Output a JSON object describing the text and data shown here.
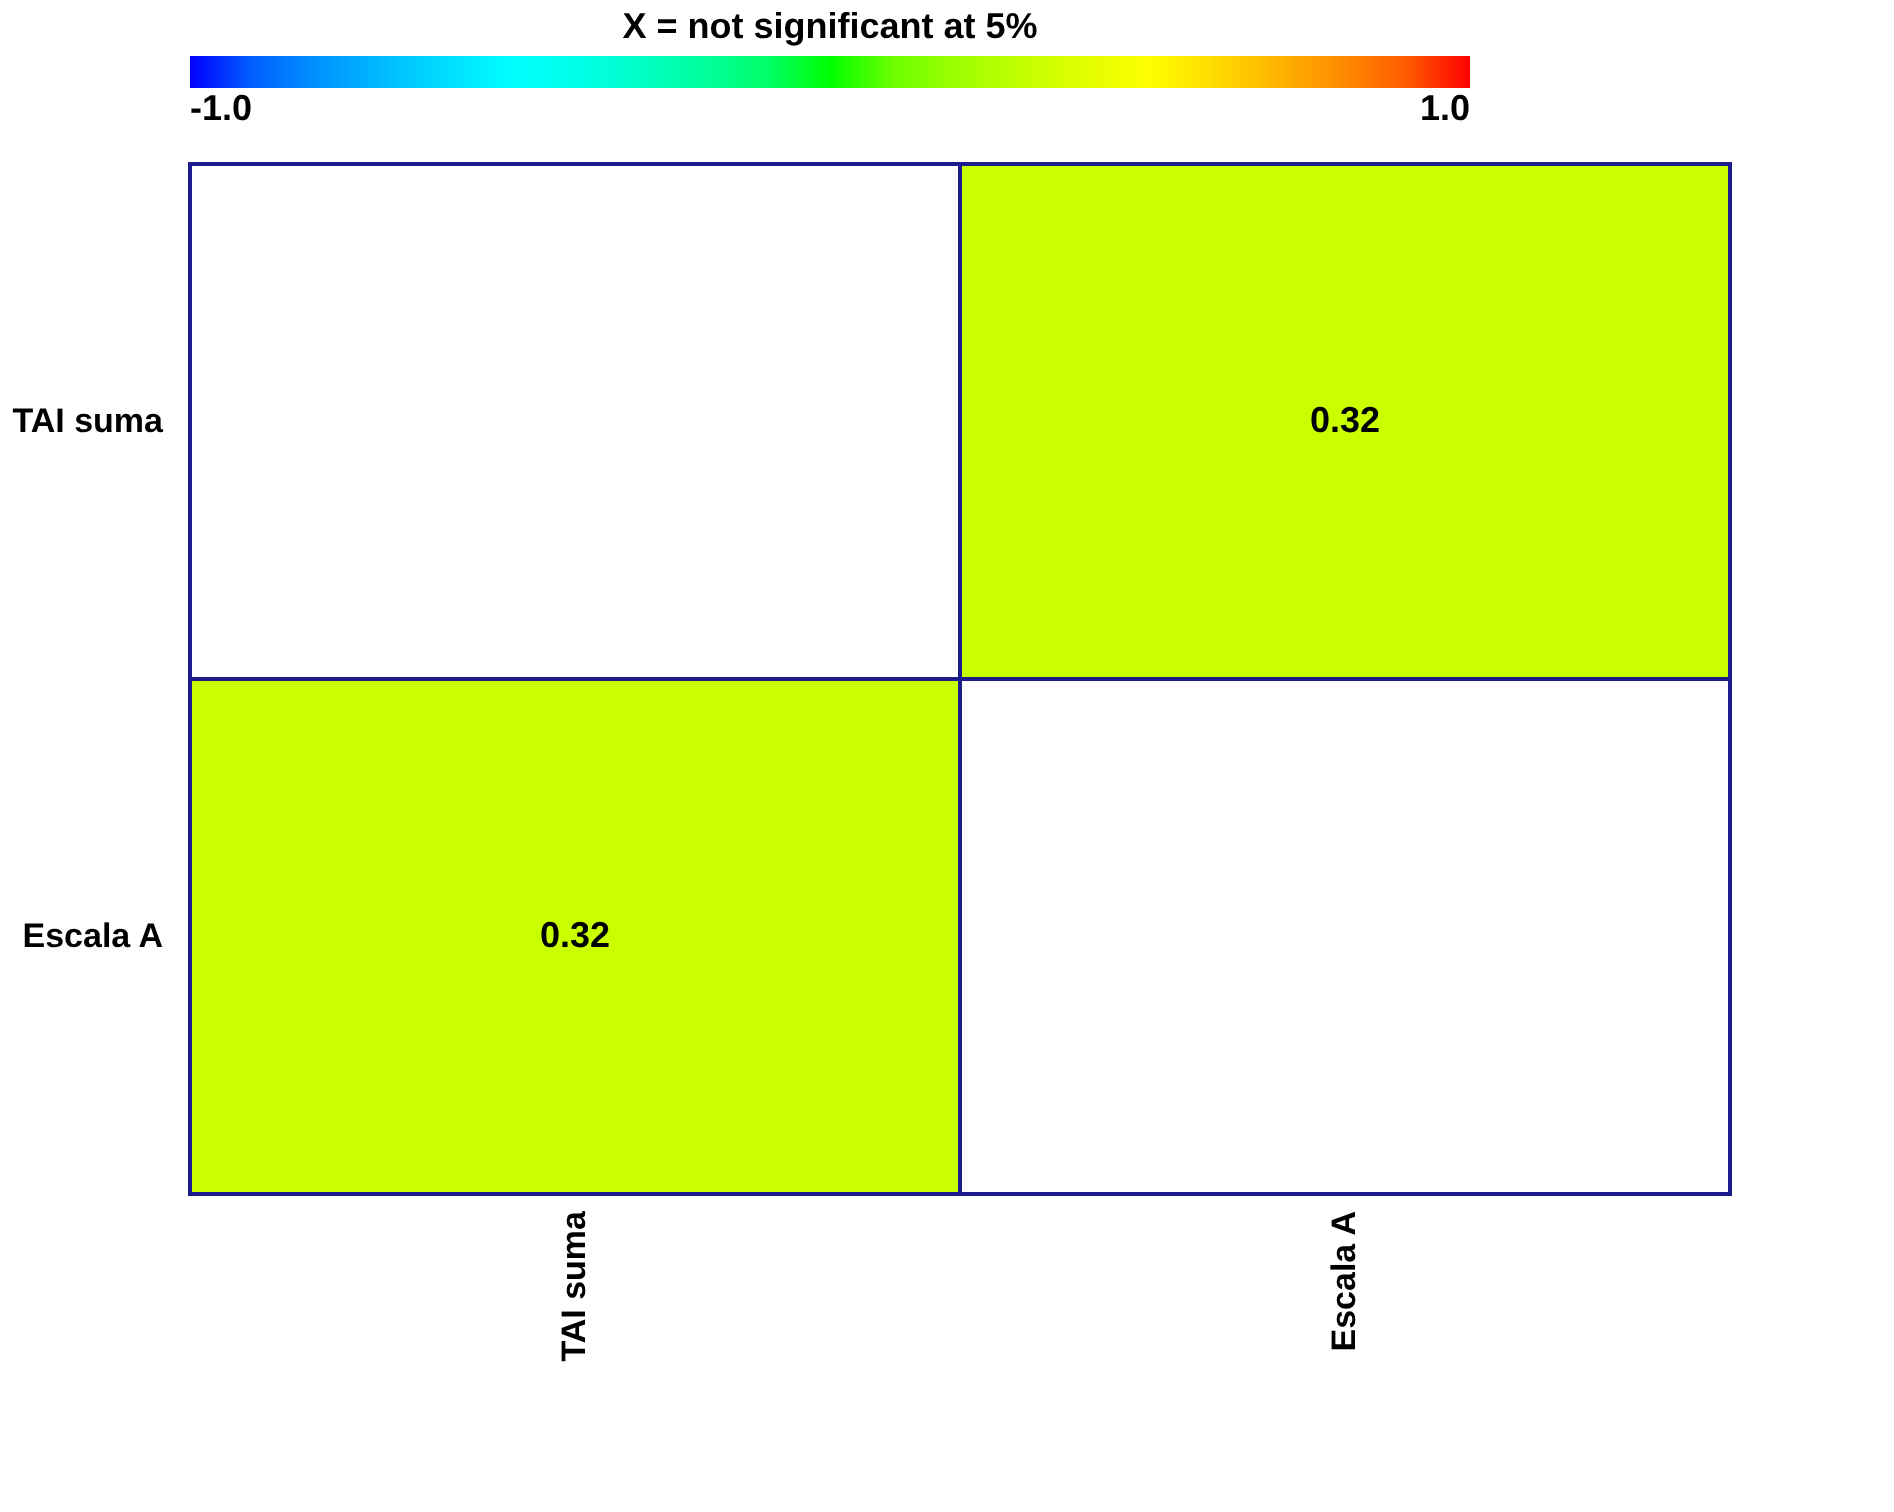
{
  "chart_data": {
    "type": "heatmap",
    "clabel": "X = not significant at 5%",
    "categories": [
      "TAI suma",
      "Escala A"
    ],
    "y_categories": [
      "TAI suma",
      "Escala A"
    ],
    "cells": [
      [
        null,
        0.32
      ],
      [
        0.32,
        null
      ]
    ],
    "data_labels": true,
    "clim": [
      -1.0,
      1.0
    ],
    "cticks": [
      {
        "value": -1.0,
        "label": "-1.0"
      },
      {
        "value": 1.0,
        "label": "1.0"
      }
    ]
  }
}
